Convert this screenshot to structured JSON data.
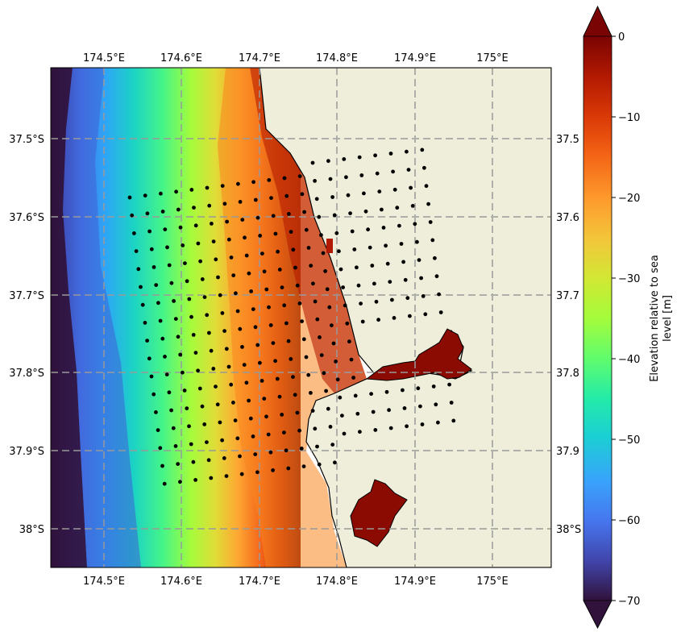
{
  "map": {
    "lon_range": [
      174.43,
      175.075
    ],
    "lat_range": [
      -38.05,
      -37.41
    ],
    "x_ticks": [
      {
        "value": 174.5,
        "label": "174.5°E"
      },
      {
        "value": 174.6,
        "label": "174.6°E"
      },
      {
        "value": 174.7,
        "label": "174.7°E"
      },
      {
        "value": 174.8,
        "label": "174.8°E"
      },
      {
        "value": 174.9,
        "label": "174.9°E"
      },
      {
        "value": 175.0,
        "label": "175°E"
      }
    ],
    "y_ticks_left": [
      {
        "value": -37.5,
        "label": "37.5°S"
      },
      {
        "value": -37.6,
        "label": "37.6°S"
      },
      {
        "value": -37.7,
        "label": "37.7°S"
      },
      {
        "value": -37.8,
        "label": "37.8°S"
      },
      {
        "value": -37.9,
        "label": "37.9°S"
      },
      {
        "value": -38.0,
        "label": "38°S"
      }
    ],
    "y_ticks_right": [
      {
        "value": -37.5,
        "label": "37.5"
      },
      {
        "value": -37.6,
        "label": "37.6"
      },
      {
        "value": -37.7,
        "label": "37.7"
      },
      {
        "value": -37.8,
        "label": "37.8"
      },
      {
        "value": -37.9,
        "label": "37.9"
      },
      {
        "value": -38.0,
        "label": "38°S"
      }
    ],
    "land_color": "#efeedb",
    "gridlines": true,
    "dot_color": "#000000"
  },
  "colorbar": {
    "label_line1": "Elevation relative to sea",
    "label_line2": "level [m]",
    "range": [
      -70,
      0
    ],
    "extend": "both",
    "colormap": "turbo",
    "ticks": [
      {
        "value": 0,
        "label": "0"
      },
      {
        "value": -10,
        "label": "−10"
      },
      {
        "value": -20,
        "label": "−20"
      },
      {
        "value": -30,
        "label": "−30"
      },
      {
        "value": -40,
        "label": "−40"
      },
      {
        "value": -50,
        "label": "−50"
      },
      {
        "value": -60,
        "label": "−60"
      },
      {
        "value": -70,
        "label": "−70"
      }
    ]
  }
}
